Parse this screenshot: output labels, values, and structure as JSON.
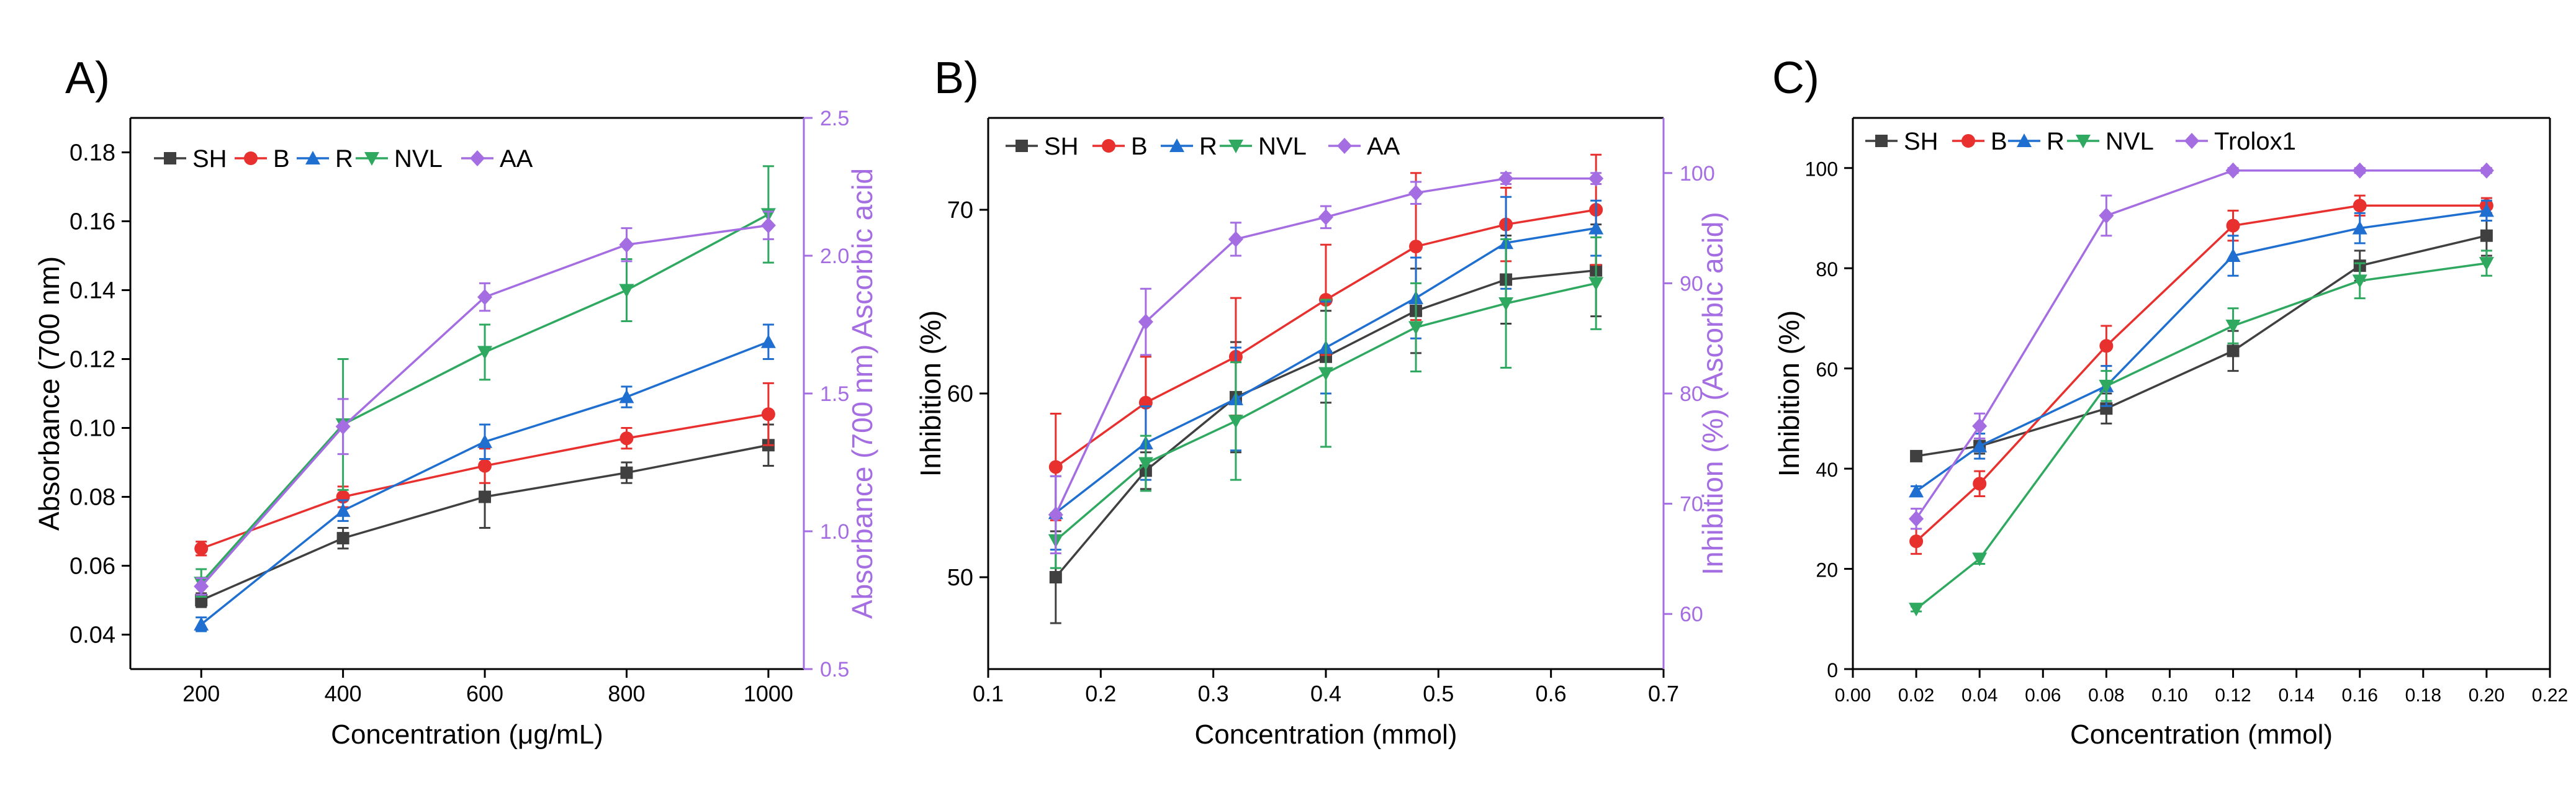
{
  "colors": {
    "SH": "#404040",
    "B": "#e8302e",
    "R": "#1f6fd1",
    "NVL": "#2fa860",
    "AA": "#a56de2",
    "Trolox1": "#a56de2",
    "axis": "#000000",
    "right_axis": "#a56de2"
  },
  "chart_data": [
    {
      "panel_label": "A)",
      "type": "line",
      "xlabel": "Concentration (μg/mL)",
      "ylabel": "Absorbance (700 nm)",
      "y2label": "Absorbance (700 nm) Ascorbic acid",
      "xlim": [
        100,
        1050
      ],
      "ylim": [
        0.03,
        0.19
      ],
      "y2lim": [
        0.5,
        2.5
      ],
      "xticks": [
        "200",
        "400",
        "600",
        "800",
        "1000"
      ],
      "yticks": [
        "0.04",
        "0.06",
        "0.08",
        "0.10",
        "0.12",
        "0.14",
        "0.16",
        "0.18"
      ],
      "y2ticks": [
        "0.5",
        "1.0",
        "1.5",
        "2.0",
        "2.5"
      ],
      "x": [
        200,
        400,
        600,
        800,
        1000
      ],
      "series": [
        {
          "name": "SH",
          "marker": "square",
          "axis": "left",
          "values": [
            0.05,
            0.068,
            0.08,
            0.087,
            0.095
          ],
          "errors": [
            0.002,
            0.003,
            0.009,
            0.003,
            0.006
          ]
        },
        {
          "name": "B",
          "marker": "circle",
          "axis": "left",
          "values": [
            0.065,
            0.08,
            0.089,
            0.097,
            0.104
          ],
          "errors": [
            0.002,
            0.003,
            0.005,
            0.003,
            0.009
          ]
        },
        {
          "name": "R",
          "marker": "triangle",
          "axis": "left",
          "values": [
            0.043,
            0.076,
            0.096,
            0.109,
            0.125
          ],
          "errors": [
            0.002,
            0.003,
            0.005,
            0.003,
            0.005
          ]
        },
        {
          "name": "NVL",
          "marker": "triangle-down",
          "axis": "left",
          "values": [
            0.055,
            0.101,
            0.122,
            0.14,
            0.162
          ],
          "errors": [
            0.004,
            0.019,
            0.008,
            0.009,
            0.014
          ]
        },
        {
          "name": "AA",
          "marker": "diamond",
          "axis": "right",
          "values": [
            0.8,
            1.38,
            1.85,
            2.04,
            2.11
          ],
          "errors": [
            0.03,
            0.1,
            0.05,
            0.06,
            0.05
          ]
        }
      ]
    },
    {
      "panel_label": "B)",
      "type": "line",
      "xlabel": "Concentration (mmol)",
      "ylabel": "Inhibition (%)",
      "y2label": "Inhibition (%) (Ascorbic acid)",
      "xlim": [
        0.1,
        0.7
      ],
      "ylim": [
        45,
        75
      ],
      "y2lim": [
        55,
        105
      ],
      "xticks": [
        "0.1",
        "0.2",
        "0.3",
        "0.4",
        "0.5",
        "0.6",
        "0.7"
      ],
      "yticks": [
        "50",
        "60",
        "70"
      ],
      "y2ticks": [
        "60",
        "70",
        "80",
        "90",
        "100"
      ],
      "x": [
        0.16,
        0.24,
        0.32,
        0.4,
        0.48,
        0.56,
        0.64
      ],
      "series": [
        {
          "name": "SH",
          "marker": "square",
          "axis": "left",
          "values": [
            50.0,
            55.8,
            59.8,
            62.0,
            64.5,
            66.2,
            66.7
          ],
          "errors": [
            2.5,
            1.0,
            3.0,
            2.5,
            2.3,
            2.4,
            2.5
          ]
        },
        {
          "name": "B",
          "marker": "circle",
          "axis": "left",
          "values": [
            56.0,
            59.5,
            62.0,
            65.1,
            68.0,
            69.2,
            70.0
          ],
          "errors": [
            2.9,
            2.5,
            3.2,
            3.0,
            4.0,
            2.0,
            3.0
          ]
        },
        {
          "name": "R",
          "marker": "triangle",
          "axis": "left",
          "values": [
            53.5,
            57.3,
            59.7,
            62.5,
            65.2,
            68.2,
            69.0
          ],
          "errors": [
            2.0,
            2.0,
            2.8,
            2.5,
            2.2,
            2.5,
            1.5
          ]
        },
        {
          "name": "NVL",
          "marker": "triangle-down",
          "axis": "left",
          "values": [
            52.0,
            56.2,
            58.5,
            61.1,
            63.6,
            64.9,
            66.0
          ],
          "errors": [
            1.5,
            1.5,
            3.2,
            4.0,
            2.4,
            3.5,
            2.5
          ]
        },
        {
          "name": "AA",
          "marker": "diamond",
          "axis": "right",
          "values": [
            69.0,
            86.5,
            94.0,
            96.0,
            98.2,
            99.5,
            99.5
          ],
          "errors": [
            3.5,
            3.0,
            1.5,
            1.0,
            1.0,
            0.5,
            0.5
          ]
        }
      ]
    },
    {
      "panel_label": "C)",
      "type": "line",
      "xlabel": "Concentration (mmol)",
      "ylabel": "Inhibition (%)",
      "xlim": [
        0.0,
        0.22
      ],
      "ylim": [
        0,
        110
      ],
      "xticks": [
        "0.00",
        "0.02",
        "0.04",
        "0.06",
        "0.08",
        "0.10",
        "0.12",
        "0.14",
        "0.16",
        "0.18",
        "0.20",
        "0.22"
      ],
      "yticks": [
        "0",
        "20",
        "40",
        "60",
        "80",
        "100"
      ],
      "x": [
        0.02,
        0.04,
        0.08,
        0.12,
        0.16,
        0.2
      ],
      "series": [
        {
          "name": "SH",
          "marker": "square",
          "axis": "left",
          "values": [
            42.5,
            44.5,
            52.0,
            63.5,
            80.5,
            86.5
          ],
          "errors": [
            1.0,
            1.5,
            3.0,
            4.0,
            3.0,
            4.0
          ]
        },
        {
          "name": "B",
          "marker": "circle",
          "axis": "left",
          "values": [
            25.5,
            37.0,
            64.5,
            88.5,
            92.5,
            92.5
          ],
          "errors": [
            2.5,
            2.5,
            4.0,
            3.0,
            2.0,
            1.5
          ]
        },
        {
          "name": "R",
          "marker": "triangle",
          "axis": "left",
          "values": [
            35.5,
            44.5,
            56.5,
            82.5,
            88.0,
            91.5
          ],
          "errors": [
            1.0,
            2.5,
            4.0,
            4.0,
            3.0,
            2.0
          ]
        },
        {
          "name": "NVL",
          "marker": "triangle-down",
          "axis": "left",
          "values": [
            12.0,
            22.0,
            56.5,
            68.5,
            77.5,
            81.0
          ],
          "errors": [
            0.5,
            1.0,
            3.0,
            3.5,
            3.5,
            2.5
          ]
        },
        {
          "name": "Trolox1",
          "marker": "diamond",
          "axis": "left",
          "values": [
            30.0,
            48.5,
            90.5,
            99.5,
            99.5,
            99.5
          ],
          "errors": [
            2.0,
            2.5,
            4.0,
            0.5,
            0.5,
            0.5
          ]
        }
      ]
    }
  ]
}
